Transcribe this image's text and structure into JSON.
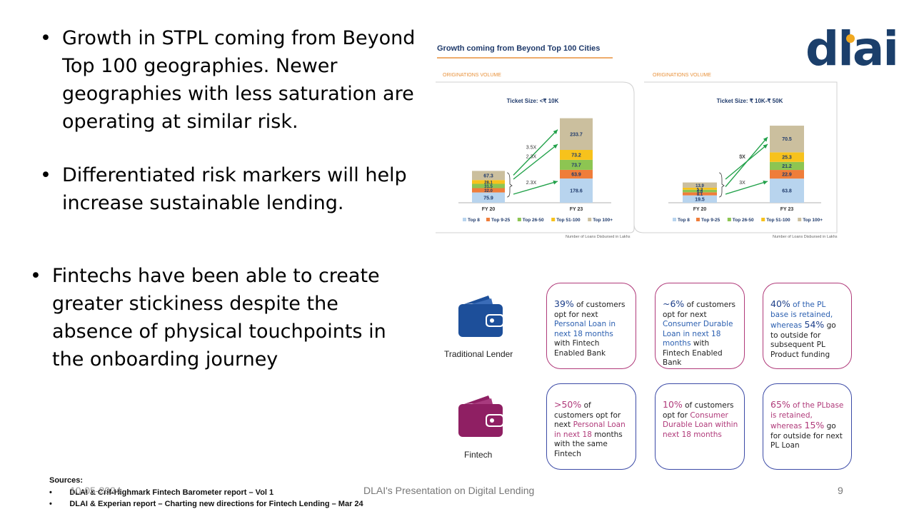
{
  "bullets": [
    {
      "text": "Growth in STPL coming from Beyond Top 100 geographies. Newer geographies with less saturation are operating at similar risk."
    },
    {
      "text": "Differentiated risk markers will help increase sustainable lending."
    },
    {
      "text": "Fintechs have been able to create greater stickiness despite the absence of physical touchpoints in the onboarding journey"
    }
  ],
  "logo": {
    "text": "dlai",
    "color": "#1b3f6b",
    "dot_color": "#f0a820"
  },
  "chart_header": {
    "title": "Growth coming from Beyond Top 100 Cities",
    "sub_left": "ORIGINATIONS VOLUME",
    "sub_right": "ORIGINATIONS VOLUME",
    "footnote_left": "Number of Loans Disbursed in Lakhs",
    "footnote_right": "Number of Loans Disbursed in Lakhs"
  },
  "chart_data": [
    {
      "type": "bar",
      "title": "Ticket Size: <₹ 10K",
      "categories": [
        "FY 20",
        "FY 23"
      ],
      "series": [
        {
          "name": "Top 8",
          "values": [
            75.9,
            178.6
          ]
        },
        {
          "name": "Top 9-25",
          "values": [
            32.0,
            63.9
          ]
        },
        {
          "name": "Top 26-50",
          "values": [
            31.5,
            73.7
          ]
        },
        {
          "name": "Top 51-100",
          "values": [
            28.1,
            73.2
          ]
        },
        {
          "name": "Top 100+",
          "values": [
            67.3,
            233.7
          ]
        }
      ],
      "annotations": [
        "3.5X",
        "2.3X",
        "2.3X"
      ],
      "colors": [
        "#b8d4ee",
        "#ef7d3a",
        "#8dc552",
        "#f7c21c",
        "#cbbf9e"
      ]
    },
    {
      "type": "bar",
      "title": "Ticket Size: ₹ 10K-₹ 50K",
      "categories": [
        "FY 20",
        "FY 23"
      ],
      "series": [
        {
          "name": "Top 8",
          "values": [
            19.5,
            63.8
          ]
        },
        {
          "name": "Top 9-25",
          "values": [
            8.1,
            22.9
          ]
        },
        {
          "name": "Top 26-50",
          "values": [
            6.8,
            21.2
          ]
        },
        {
          "name": "Top 51-100",
          "values": [
            5.3,
            25.3
          ]
        },
        {
          "name": "Top 100+",
          "values": [
            13.9,
            70.5
          ]
        }
      ],
      "annotations": [
        "5X",
        "3X",
        "3X"
      ],
      "colors": [
        "#b8d4ee",
        "#ef7d3a",
        "#8dc552",
        "#f7c21c",
        "#cbbf9e"
      ]
    }
  ],
  "lenders": {
    "traditional": {
      "label": "Traditional Lender",
      "color": "#1d4f9a"
    },
    "fintech": {
      "label": "Fintech",
      "color": "#8f1f63"
    }
  },
  "cards": {
    "t1": {
      "big": "39%",
      "a": " of customers opt for next ",
      "b": "Personal Loan in next 18 months",
      "c": " with Fintech Enabled Bank"
    },
    "t2": {
      "big": "~6%",
      "a": " of customers opt for next ",
      "b": "Consumer Durable Loan in next 18 months",
      "c": " with Fintech Enabled Bank"
    },
    "t3": {
      "big": "40%",
      "a": " of the PL base is retained, whereas ",
      "big2": "54%",
      "b": " go to outside for subsequent PL Product funding"
    },
    "f1": {
      "big": ">50%",
      "a": " of customers opt for next ",
      "b": "Personal Loan in next 18",
      "c": " months with the same Fintech"
    },
    "f2": {
      "big": "10%",
      "a": " of customers opt for ",
      "b": "Consumer Durable Loan within next 18 months"
    },
    "f3": {
      "big": "65%",
      "a": " of the PLbase is retained, whereas ",
      "big2": "15%",
      "b": " go for outside for next PL Loan"
    }
  },
  "sources": {
    "label": "Sources:",
    "items": [
      "DLAI & Crif-Highmark  Fintech Barometer report – Vol 1",
      "DLAI & Experian  report – Charting new directions for Fintech Lending – Mar 24"
    ]
  },
  "footer": {
    "date": "10-05-2024",
    "center": "DLAI's Presentation on Digital Lending",
    "page": "9"
  }
}
